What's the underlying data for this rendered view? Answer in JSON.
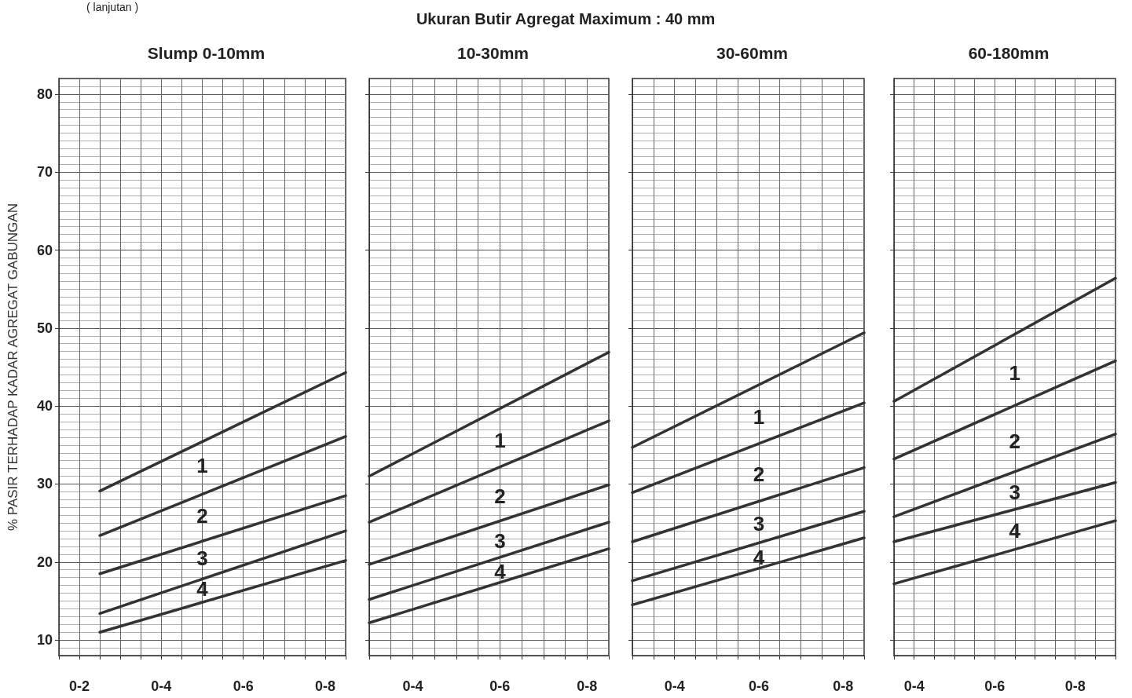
{
  "chart_data": [
    {
      "type": "line",
      "title": "Slump 0-10mm",
      "ylabel": "% PASIR TERHADAP KADAR AGREGAT GABUNGAN",
      "categories": [
        null,
        "0-2",
        null,
        null,
        null,
        "0-4",
        null,
        null,
        null,
        "0-6",
        null,
        null,
        null,
        "0-8",
        null
      ],
      "ylim": [
        8,
        82
      ],
      "yticks": [
        10,
        20,
        30,
        40,
        50,
        60,
        70,
        80
      ],
      "grid": true,
      "annotations": [
        "( lanjutan )",
        "Ukuran Butir Agregat Maximum : 40 mm",
        "1",
        "2",
        "3",
        "4"
      ],
      "series": [
        {
          "color": "#333333",
          "values": [
            null,
            null,
            29.1,
            null,
            null,
            null,
            null,
            null,
            null,
            null,
            null,
            null,
            null,
            null,
            44.3
          ]
        },
        {
          "color": "#333333",
          "values": [
            null,
            null,
            23.4,
            null,
            null,
            null,
            null,
            null,
            null,
            null,
            null,
            null,
            null,
            null,
            36.1
          ]
        },
        {
          "color": "#333333",
          "values": [
            null,
            null,
            18.5,
            null,
            null,
            null,
            null,
            null,
            null,
            null,
            null,
            null,
            null,
            null,
            28.5
          ]
        },
        {
          "color": "#333333",
          "values": [
            null,
            null,
            13.4,
            null,
            null,
            null,
            null,
            null,
            null,
            null,
            null,
            null,
            null,
            null,
            24
          ]
        },
        {
          "color": "#333333",
          "values": [
            null,
            null,
            11,
            null,
            null,
            null,
            null,
            null,
            null,
            null,
            null,
            null,
            null,
            null,
            20.2
          ]
        }
      ]
    },
    {
      "type": "line",
      "title": "10-30mm",
      "categories": [
        null,
        null,
        "0-4",
        null,
        null,
        null,
        "0-6",
        null,
        null,
        null,
        "0-8",
        null
      ],
      "ylim": [
        8,
        82
      ],
      "yticks": [
        10,
        20,
        30,
        40,
        50,
        60,
        70,
        80
      ],
      "grid": true,
      "tick_labels": "x",
      "annotations": [
        "1",
        "2",
        "3",
        "4"
      ],
      "series": [
        {
          "color": "#333333",
          "values": [
            31,
            null,
            null,
            null,
            null,
            null,
            null,
            null,
            null,
            null,
            null,
            46.9
          ]
        },
        {
          "color": "#333333",
          "values": [
            25.1,
            null,
            null,
            null,
            null,
            null,
            null,
            null,
            null,
            null,
            null,
            38.1
          ]
        },
        {
          "color": "#333333",
          "values": [
            19.7,
            null,
            null,
            null,
            null,
            null,
            null,
            null,
            null,
            null,
            null,
            29.9
          ]
        },
        {
          "color": "#333333",
          "values": [
            15.2,
            null,
            null,
            null,
            null,
            null,
            null,
            null,
            null,
            null,
            null,
            25.1
          ]
        },
        {
          "color": "#333333",
          "values": [
            12.2,
            null,
            null,
            null,
            null,
            null,
            null,
            null,
            null,
            null,
            null,
            21.7
          ]
        }
      ]
    },
    {
      "type": "line",
      "title": "30-60mm",
      "categories": [
        null,
        null,
        "0-4",
        null,
        null,
        null,
        "0-6",
        null,
        null,
        null,
        "0-8",
        null
      ],
      "ylim": [
        8,
        82
      ],
      "yticks": [
        10,
        20,
        30,
        40,
        50,
        60,
        70,
        80
      ],
      "grid": true,
      "tick_labels": "x",
      "annotations": [
        "1",
        "2",
        "3",
        "4"
      ],
      "series": [
        {
          "color": "#333333",
          "values": [
            34.7,
            null,
            null,
            null,
            null,
            null,
            null,
            null,
            null,
            null,
            null,
            49.4
          ]
        },
        {
          "color": "#333333",
          "values": [
            28.9,
            null,
            null,
            null,
            null,
            null,
            null,
            null,
            null,
            null,
            null,
            40.4
          ]
        },
        {
          "color": "#333333",
          "values": [
            22.6,
            null,
            null,
            null,
            null,
            null,
            null,
            null,
            null,
            null,
            null,
            32.1
          ]
        },
        {
          "color": "#333333",
          "values": [
            17.6,
            null,
            null,
            null,
            null,
            null,
            null,
            null,
            null,
            null,
            null,
            26.5
          ]
        },
        {
          "color": "#333333",
          "values": [
            14.5,
            null,
            null,
            null,
            null,
            null,
            null,
            null,
            null,
            null,
            null,
            23.1
          ]
        }
      ]
    },
    {
      "type": "line",
      "title": "60-180mm",
      "categories": [
        null,
        "0-4",
        null,
        null,
        null,
        "0-6",
        null,
        null,
        null,
        "0-8",
        null,
        null
      ],
      "ylim": [
        8,
        82
      ],
      "yticks": [
        10,
        20,
        30,
        40,
        50,
        60,
        70,
        80
      ],
      "grid": true,
      "tick_labels": "x",
      "annotations": [
        "1",
        "2",
        "3",
        "4"
      ],
      "series": [
        {
          "color": "#333333",
          "values": [
            40.6,
            null,
            null,
            null,
            null,
            null,
            null,
            null,
            null,
            null,
            null,
            56.4
          ]
        },
        {
          "color": "#333333",
          "values": [
            33.2,
            null,
            null,
            null,
            null,
            null,
            null,
            null,
            null,
            null,
            null,
            45.8
          ]
        },
        {
          "color": "#333333",
          "values": [
            25.8,
            null,
            null,
            null,
            null,
            null,
            null,
            null,
            null,
            null,
            null,
            36.4
          ]
        },
        {
          "color": "#333333",
          "values": [
            22.6,
            null,
            null,
            null,
            null,
            null,
            null,
            null,
            null,
            null,
            null,
            30.2
          ]
        },
        {
          "color": "#333333",
          "values": [
            17.2,
            null,
            null,
            null,
            null,
            null,
            null,
            null,
            null,
            null,
            null,
            25.3
          ]
        }
      ]
    }
  ]
}
